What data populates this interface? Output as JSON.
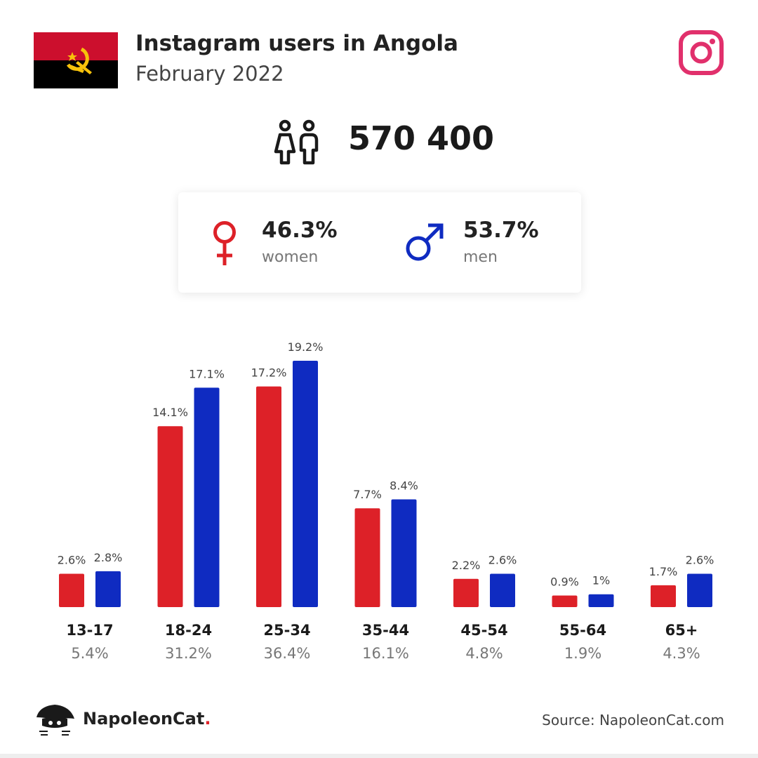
{
  "header": {
    "title": "Instagram users in Angola",
    "subtitle": "February 2022"
  },
  "total": {
    "value": "570 400"
  },
  "gender": {
    "women": {
      "percent": "46.3%",
      "label": "women"
    },
    "men": {
      "percent": "53.7%",
      "label": "men"
    }
  },
  "colors": {
    "women": "#dd2128",
    "men": "#0f2bc1",
    "instagram": "#e1306c",
    "flag_red": "#cc0f2d",
    "flag_black": "#000000",
    "flag_emblem": "#f7c20b"
  },
  "icons": {
    "flag": "angola-flag-icon",
    "instagram": "instagram-icon",
    "people": "people-icon",
    "women": "female-symbol-icon",
    "men": "male-symbol-icon",
    "brand": "napoleoncat-logo-icon"
  },
  "chart_data": {
    "type": "bar",
    "categories": [
      "13-17",
      "18-24",
      "25-34",
      "35-44",
      "45-54",
      "55-64",
      "65+"
    ],
    "category_totals": [
      "5.4%",
      "31.2%",
      "36.4%",
      "16.1%",
      "4.8%",
      "1.9%",
      "4.3%"
    ],
    "series": [
      {
        "values": [
          2.6,
          14.1,
          17.2,
          7.7,
          2.2,
          0.9,
          1.7
        ],
        "labels": [
          "2.6%",
          "14.1%",
          "17.2%",
          "7.7%",
          "2.2%",
          "0.9%",
          "1.7%"
        ],
        "color": "#dd2128"
      },
      {
        "values": [
          2.8,
          17.1,
          19.2,
          8.4,
          2.6,
          1,
          2.6
        ],
        "labels": [
          "2.8%",
          "17.1%",
          "19.2%",
          "8.4%",
          "2.6%",
          "1%",
          "2.6%"
        ],
        "color": "#0f2bc1"
      }
    ],
    "ylim": [
      0,
      19.2
    ],
    "grid": false
  },
  "footer": {
    "brand_name": "NapoleonCat",
    "brand_dot": ".",
    "source": "Source: NapoleonCat.com"
  }
}
